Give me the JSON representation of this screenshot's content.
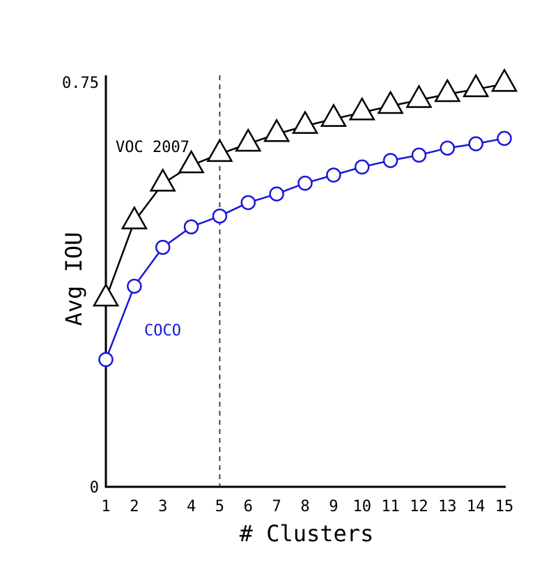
{
  "chart_data": {
    "type": "line",
    "title": "",
    "xlabel": "# Clusters",
    "ylabel": "Avg IOU",
    "x": [
      1,
      2,
      3,
      4,
      5,
      6,
      7,
      8,
      9,
      10,
      11,
      12,
      13,
      14,
      15
    ],
    "xlim": [
      1,
      15
    ],
    "ylim": [
      0,
      0.75
    ],
    "y_tick_labels": [
      "0",
      "0.75"
    ],
    "x_tick_labels": [
      "1",
      "2",
      "3",
      "4",
      "5",
      "6",
      "7",
      "8",
      "9",
      "10",
      "11",
      "12",
      "13",
      "14",
      "15"
    ],
    "grid": false,
    "reference_line": {
      "x": 5,
      "style": "dashed"
    },
    "series": [
      {
        "name": "VOC 2007",
        "color": "#000000",
        "marker": "triangle",
        "values": [
          0.349,
          0.492,
          0.562,
          0.596,
          0.617,
          0.636,
          0.654,
          0.669,
          0.682,
          0.694,
          0.706,
          0.717,
          0.728,
          0.737,
          0.747
        ]
      },
      {
        "name": "COCO",
        "color": "#1818d6",
        "marker": "circle",
        "values": [
          0.236,
          0.372,
          0.444,
          0.482,
          0.502,
          0.527,
          0.543,
          0.563,
          0.578,
          0.593,
          0.605,
          0.615,
          0.628,
          0.636,
          0.646
        ]
      }
    ]
  }
}
